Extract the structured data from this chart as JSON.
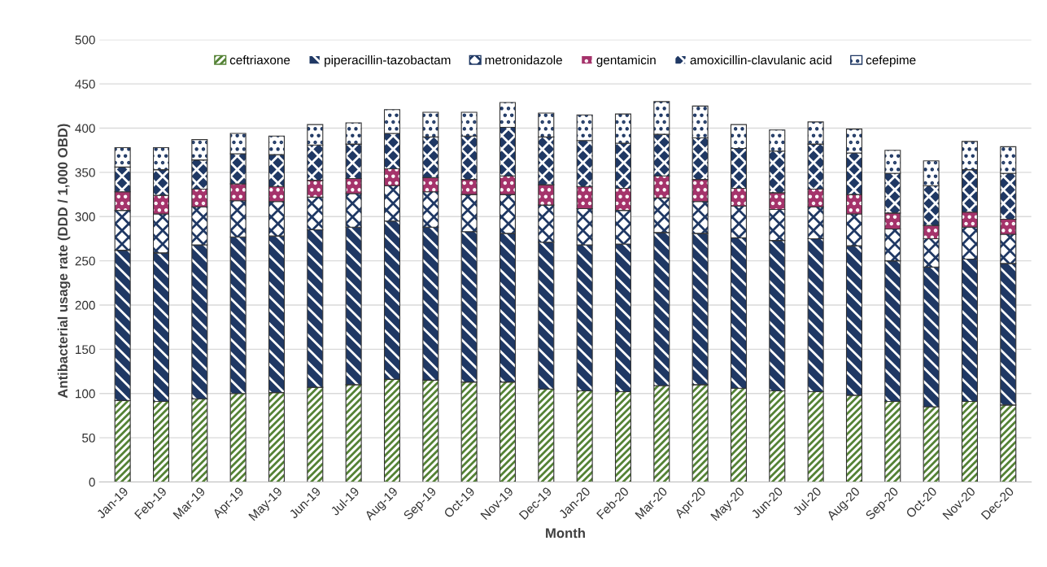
{
  "chart_data": {
    "type": "bar",
    "stacked": true,
    "xlabel": "Month",
    "ylabel": "Antibacterial usage rate (DDD / 1,000 OBD)",
    "categories": [
      "Jan-19",
      "Feb-19",
      "Mar-19",
      "Apr-19",
      "May-19",
      "Jun-19",
      "Jul-19",
      "Aug-19",
      "Sep-19",
      "Oct-19",
      "Nov-19",
      "Dec-19",
      "Jan-20",
      "Feb-20",
      "Mar-20",
      "Apr-20",
      "May-20",
      "Jun-20",
      "Jul-20",
      "Aug-20",
      "Sep-20",
      "Oct-20",
      "Nov-20",
      "Dec-20"
    ],
    "series": [
      {
        "name": "ceftriaxone",
        "color": "#548235",
        "values": [
          92,
          91,
          94,
          100,
          101,
          107,
          110,
          116,
          115,
          113,
          113,
          105,
          103,
          102,
          109,
          110,
          106,
          103,
          102,
          98,
          91,
          85,
          91,
          87
        ]
      },
      {
        "name": "piperacillin-tazobactam",
        "color": "#1f3864",
        "values": [
          170,
          168,
          174,
          177,
          177,
          178,
          178,
          179,
          173,
          170,
          168,
          166,
          165,
          167,
          173,
          171,
          170,
          170,
          173,
          169,
          159,
          158,
          161,
          160
        ]
      },
      {
        "name": "metronidazole",
        "color": "#1f3864",
        "values": [
          45,
          44,
          43,
          41,
          39,
          37,
          38,
          40,
          40,
          42,
          44,
          42,
          41,
          38,
          39,
          36,
          36,
          35,
          36,
          36,
          36,
          32,
          36,
          33
        ]
      },
      {
        "name": "gentamicin",
        "color": "#a5336b",
        "values": [
          21,
          21,
          20,
          19,
          17,
          19,
          17,
          19,
          16,
          17,
          21,
          23,
          25,
          25,
          25,
          25,
          20,
          19,
          20,
          22,
          18,
          15,
          17,
          17
        ]
      },
      {
        "name": "amoxicillin-clavulanic acid",
        "color": "#1f3864",
        "values": [
          28,
          29,
          33,
          34,
          36,
          40,
          39,
          40,
          46,
          49,
          55,
          54,
          52,
          51,
          47,
          47,
          45,
          47,
          51,
          47,
          45,
          45,
          48,
          52
        ]
      },
      {
        "name": "cefepime",
        "color": "#1f3864",
        "values": [
          22,
          25,
          23,
          23,
          21,
          23,
          24,
          27,
          28,
          27,
          28,
          27,
          29,
          33,
          37,
          36,
          27,
          24,
          25,
          27,
          26,
          28,
          32,
          30
        ]
      }
    ],
    "ylim": [
      0,
      500
    ],
    "yticks": [
      0,
      50,
      100,
      150,
      200,
      250,
      300,
      350,
      400,
      450,
      500
    ],
    "grid": "y",
    "legend": "top"
  }
}
